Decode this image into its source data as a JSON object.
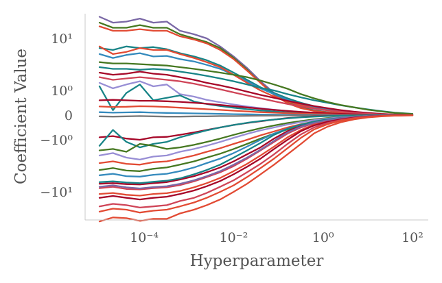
{
  "chart_data": {
    "type": "line",
    "title": "",
    "xlabel": "Hyperparameter",
    "ylabel": "Coefficient Value",
    "x_scale": "log",
    "y_scale": "symlog",
    "xlim": [
      1e-05,
      100
    ],
    "ylim": [
      -60,
      40
    ],
    "x_ticks": [
      {
        "value": 0.0001,
        "label": "10⁻⁴"
      },
      {
        "value": 0.01,
        "label": "10⁻²"
      },
      {
        "value": 1,
        "label": "10⁰"
      },
      {
        "value": 100,
        "label": "10²"
      }
    ],
    "y_ticks": [
      {
        "value": 10,
        "label": "10¹"
      },
      {
        "value": 1,
        "label": "10⁰"
      },
      {
        "value": 0,
        "label": "0"
      },
      {
        "value": -1,
        "label": "−10⁰"
      },
      {
        "value": -10,
        "label": "−10¹"
      }
    ],
    "grid": false,
    "legend": "none",
    "palette": [
      "#e24a33",
      "#348abd",
      "#988ed5",
      "#777777",
      "#fbc15e",
      "#8eba42",
      "#ffb5b8",
      "#a60628",
      "#467821",
      "#7a68a6",
      "#188487",
      "#cf4457",
      "#d55e00"
    ],
    "x": [
      1e-05,
      2e-05,
      4e-05,
      8e-05,
      0.00016,
      0.00032,
      0.00063,
      0.0013,
      0.0025,
      0.005,
      0.01,
      0.02,
      0.04,
      0.08,
      0.16,
      0.32,
      0.63,
      1.26,
      2.5,
      5,
      10,
      20,
      40,
      100
    ],
    "series": [
      {
        "color": "#7a68a6",
        "values": [
          26,
          20,
          21,
          24,
          20,
          21,
          14,
          12,
          10,
          7,
          4.5,
          2.7,
          1.5,
          0.9,
          0.55,
          0.33,
          0.2,
          0.12,
          0.07,
          0.04,
          0.02,
          0.01,
          0.005,
          0.003
        ]
      },
      {
        "color": "#467821",
        "values": [
          20,
          16,
          16,
          18,
          16,
          16,
          12,
          10,
          8.5,
          6.5,
          4.2,
          2.5,
          1.4,
          0.85,
          0.5,
          0.3,
          0.18,
          0.11,
          0.06,
          0.035,
          0.018,
          0.009,
          0.004,
          0.002
        ]
      },
      {
        "color": "#e24a33",
        "values": [
          17,
          14,
          14,
          15,
          14,
          14,
          11,
          9.5,
          8,
          6,
          4,
          2.4,
          1.4,
          0.82,
          0.48,
          0.28,
          0.17,
          0.1,
          0.06,
          0.034,
          0.017,
          0.009,
          0.004,
          0.002
        ]
      },
      {
        "color": "#188487",
        "values": [
          6.5,
          6,
          7,
          6.5,
          6.8,
          6.2,
          5.2,
          4.5,
          3.8,
          3,
          2.2,
          1.6,
          1.15,
          0.9,
          0.68,
          0.5,
          0.36,
          0.26,
          0.18,
          0.12,
          0.07,
          0.04,
          0.02,
          0.01
        ]
      },
      {
        "color": "#348abd",
        "values": [
          5,
          4.2,
          4.8,
          5.2,
          4.5,
          4.6,
          4,
          3.6,
          3.1,
          2.6,
          2,
          1.5,
          1.1,
          0.85,
          0.62,
          0.45,
          0.32,
          0.22,
          0.15,
          0.1,
          0.06,
          0.03,
          0.015,
          0.006
        ]
      },
      {
        "color": "#e24a33",
        "values": [
          7,
          5,
          5.5,
          6.5,
          6,
          6,
          5,
          4.2,
          3.5,
          2.8,
          2,
          1.4,
          1,
          0.75,
          0.55,
          0.4,
          0.28,
          0.19,
          0.12,
          0.08,
          0.045,
          0.025,
          0.012,
          0.005
        ]
      },
      {
        "color": "#188487",
        "values": [
          2.8,
          2.6,
          2.6,
          2.5,
          2.6,
          2.5,
          2.3,
          2.1,
          1.9,
          1.7,
          1.5,
          1.3,
          1.12,
          1,
          0.85,
          0.72,
          0.6,
          0.5,
          0.4,
          0.31,
          0.23,
          0.16,
          0.1,
          0.05
        ]
      },
      {
        "color": "#467821",
        "values": [
          3.5,
          3.3,
          3.3,
          3.2,
          3.1,
          3,
          2.8,
          2.6,
          2.4,
          2.2,
          2,
          1.8,
          1.55,
          1.3,
          1.08,
          0.85,
          0.68,
          0.53,
          0.41,
          0.31,
          0.22,
          0.15,
          0.09,
          0.045
        ]
      },
      {
        "color": "#a60628",
        "values": [
          2.2,
          2,
          2.1,
          2.3,
          2.1,
          2,
          1.8,
          1.6,
          1.4,
          1.25,
          1.1,
          0.95,
          0.82,
          0.7,
          0.58,
          0.47,
          0.37,
          0.28,
          0.2,
          0.14,
          0.09,
          0.05,
          0.025,
          0.01
        ]
      },
      {
        "color": "#cf4457",
        "values": [
          1.8,
          1.6,
          1.7,
          1.8,
          1.7,
          1.6,
          1.5,
          1.35,
          1.2,
          1.05,
          0.92,
          0.8,
          0.68,
          0.56,
          0.45,
          0.35,
          0.27,
          0.2,
          0.14,
          0.09,
          0.055,
          0.03,
          0.015,
          0.006
        ]
      },
      {
        "color": "#988ed5",
        "values": [
          1.4,
          1.1,
          1.3,
          1.5,
          1.2,
          1.3,
          0.85,
          0.75,
          0.62,
          0.52,
          0.43,
          0.35,
          0.28,
          0.22,
          0.17,
          0.12,
          0.085,
          0.06,
          0.04,
          0.025,
          0.014,
          0.008,
          0.004,
          0.002
        ]
      },
      {
        "color": "#188487",
        "values": [
          1.2,
          0.2,
          0.9,
          1.3,
          0.6,
          0.7,
          0.8,
          0.55,
          0.45,
          0.37,
          0.3,
          0.24,
          0.19,
          0.15,
          0.11,
          0.08,
          0.055,
          0.04,
          0.027,
          0.017,
          0.01,
          0.006,
          0.003,
          0.001
        ]
      },
      {
        "color": "#a60628",
        "values": [
          0.6,
          0.62,
          0.6,
          0.58,
          0.58,
          0.56,
          0.54,
          0.5,
          0.46,
          0.41,
          0.36,
          0.31,
          0.26,
          0.21,
          0.17,
          0.13,
          0.1,
          0.07,
          0.05,
          0.032,
          0.02,
          0.011,
          0.005,
          0.002
        ]
      },
      {
        "color": "#e24a33",
        "values": [
          0.35,
          0.33,
          0.34,
          0.36,
          0.35,
          0.33,
          0.3,
          0.27,
          0.24,
          0.21,
          0.18,
          0.15,
          0.12,
          0.1,
          0.08,
          0.06,
          0.045,
          0.032,
          0.022,
          0.014,
          0.008,
          0.004,
          0.002,
          0.001
        ]
      },
      {
        "color": "#348abd",
        "values": [
          0.12,
          0.1,
          0.11,
          0.12,
          0.1,
          0.09,
          0.08,
          0.07,
          0.06,
          0.05,
          0.04,
          0.032,
          0.025,
          0.019,
          0.014,
          0.01,
          0.007,
          0.005,
          0.003,
          0.002,
          0.001,
          0.0005,
          0.0002,
          0.0001
        ]
      },
      {
        "color": "#777777",
        "values": [
          -0.05,
          -0.06,
          -0.05,
          -0.04,
          -0.05,
          -0.06,
          -0.06,
          -0.05,
          -0.05,
          -0.04,
          -0.04,
          -0.03,
          -0.025,
          -0.02,
          -0.015,
          -0.01,
          -0.007,
          -0.005,
          -0.003,
          -0.002,
          -0.001,
          -0.0005,
          -0.0002,
          -0.0001
        ]
      },
      {
        "color": "#a60628",
        "values": [
          -0.9,
          -0.85,
          -0.95,
          -1,
          -0.9,
          -0.88,
          -0.8,
          -0.7,
          -0.6,
          -0.5,
          -0.4,
          -0.32,
          -0.25,
          -0.18,
          -0.12,
          -0.08,
          -0.05,
          -0.032,
          -0.02,
          -0.012,
          -0.007,
          -0.004,
          -0.002,
          -0.001
        ]
      },
      {
        "color": "#188487",
        "values": [
          -1.3,
          -0.6,
          -1.1,
          -1.4,
          -1.2,
          -1.1,
          -0.9,
          -0.75,
          -0.62,
          -0.5,
          -0.4,
          -0.31,
          -0.24,
          -0.18,
          -0.13,
          -0.09,
          -0.06,
          -0.04,
          -0.026,
          -0.016,
          -0.009,
          -0.005,
          -0.002,
          -0.001
        ]
      },
      {
        "color": "#467821",
        "values": [
          -1.6,
          -1.5,
          -1.7,
          -1.2,
          -1.3,
          -1.5,
          -1.4,
          -1.25,
          -1.1,
          -0.95,
          -0.8,
          -0.66,
          -0.53,
          -0.42,
          -0.32,
          -0.24,
          -0.17,
          -0.12,
          -0.08,
          -0.05,
          -0.03,
          -0.016,
          -0.008,
          -0.003
        ]
      },
      {
        "color": "#988ed5",
        "values": [
          -2,
          -1.8,
          -2.2,
          -2.4,
          -2.1,
          -2,
          -1.7,
          -1.5,
          -1.3,
          -1.1,
          -0.92,
          -0.76,
          -0.62,
          -0.5,
          -0.38,
          -0.28,
          -0.2,
          -0.14,
          -0.09,
          -0.055,
          -0.032,
          -0.017,
          -0.008,
          -0.003
        ]
      },
      {
        "color": "#e24a33",
        "values": [
          -2.8,
          -2.6,
          -2.9,
          -3,
          -2.7,
          -2.6,
          -2.3,
          -2,
          -1.7,
          -1.45,
          -1.2,
          -1,
          -0.82,
          -0.66,
          -0.5,
          -0.37,
          -0.26,
          -0.18,
          -0.12,
          -0.075,
          -0.044,
          -0.024,
          -0.011,
          -0.004
        ]
      },
      {
        "color": "#467821",
        "values": [
          -3.8,
          -3.5,
          -3.9,
          -4,
          -3.6,
          -3.4,
          -3,
          -2.6,
          -2.2,
          -1.85,
          -1.5,
          -1.2,
          -0.95,
          -0.75,
          -0.58,
          -0.43,
          -0.3,
          -0.21,
          -0.14,
          -0.09,
          -0.052,
          -0.028,
          -0.013,
          -0.005
        ]
      },
      {
        "color": "#348abd",
        "values": [
          -4.8,
          -4.5,
          -5,
          -5.1,
          -4.7,
          -4.5,
          -4,
          -3.4,
          -2.8,
          -2.3,
          -1.8,
          -1.35,
          -1,
          -0.75,
          -0.55,
          -0.4,
          -0.28,
          -0.19,
          -0.12,
          -0.075,
          -0.043,
          -0.023,
          -0.011,
          -0.004
        ]
      },
      {
        "color": "#a60628",
        "values": [
          -7,
          -6.8,
          -7.1,
          -7.2,
          -6.8,
          -6.5,
          -5.8,
          -5,
          -4.2,
          -3.4,
          -2.6,
          -1.9,
          -1.4,
          -0.95,
          -0.65,
          -0.45,
          -0.3,
          -0.2,
          -0.13,
          -0.08,
          -0.045,
          -0.024,
          -0.011,
          -0.004
        ]
      },
      {
        "color": "#188487",
        "values": [
          -6.5,
          -6.3,
          -6.6,
          -6.8,
          -6.4,
          -6.1,
          -5.5,
          -4.6,
          -3.8,
          -3,
          -2.2,
          -1.6,
          -1.15,
          -0.8,
          -0.56,
          -0.38,
          -0.26,
          -0.17,
          -0.11,
          -0.065,
          -0.036,
          -0.019,
          -0.009,
          -0.003
        ]
      },
      {
        "color": "#cf4457",
        "values": [
          -8.5,
          -8,
          -8.8,
          -9,
          -8.5,
          -8.2,
          -7.4,
          -6.3,
          -5.2,
          -4.2,
          -3.2,
          -2.3,
          -1.6,
          -1.1,
          -0.75,
          -0.5,
          -0.33,
          -0.21,
          -0.13,
          -0.08,
          -0.045,
          -0.024,
          -0.011,
          -0.004
        ]
      },
      {
        "color": "#e24a33",
        "values": [
          -11,
          -10.5,
          -11.4,
          -11.8,
          -11,
          -10.6,
          -9.6,
          -8.2,
          -6.8,
          -5.4,
          -4,
          -2.9,
          -2,
          -1.35,
          -0.9,
          -0.6,
          -0.39,
          -0.25,
          -0.16,
          -0.095,
          -0.053,
          -0.028,
          -0.013,
          -0.005
        ]
      },
      {
        "color": "#7a68a6",
        "values": [
          -8,
          -7.5,
          -8.2,
          -8.6,
          -8.1,
          -7.8,
          -7,
          -6,
          -5,
          -4,
          -3,
          -2.2,
          -1.55,
          -1.05,
          -0.7,
          -0.47,
          -0.31,
          -0.2,
          -0.12,
          -0.075,
          -0.042,
          -0.022,
          -0.01,
          -0.004
        ]
      },
      {
        "color": "#a60628",
        "values": [
          -13,
          -12,
          -13,
          -14,
          -13,
          -12.4,
          -11,
          -9.4,
          -7.8,
          -6.2,
          -4.6,
          -3.3,
          -2.3,
          -1.5,
          -1,
          -0.65,
          -0.42,
          -0.27,
          -0.17,
          -0.1,
          -0.056,
          -0.03,
          -0.014,
          -0.005
        ]
      },
      {
        "color": "#cf4457",
        "values": [
          -19,
          -17,
          -18,
          -20,
          -19,
          -18,
          -15,
          -13,
          -10.5,
          -8,
          -6,
          -4.2,
          -2.9,
          -1.9,
          -1.2,
          -0.78,
          -0.5,
          -0.32,
          -0.2,
          -0.12,
          -0.067,
          -0.035,
          -0.016,
          -0.006
        ]
      },
      {
        "color": "#e24a33",
        "values": [
          -24,
          -21,
          -22,
          -25,
          -23,
          -22,
          -19,
          -16,
          -13,
          -10,
          -7.5,
          -5.2,
          -3.5,
          -2.3,
          -1.45,
          -0.92,
          -0.58,
          -0.37,
          -0.23,
          -0.14,
          -0.076,
          -0.04,
          -0.018,
          -0.007
        ]
      },
      {
        "color": "#e24a33",
        "values": [
          -37,
          -31,
          -32,
          -36,
          -33,
          -33,
          -26,
          -22,
          -18,
          -14,
          -10,
          -7,
          -4.6,
          -3,
          -1.9,
          -1.2,
          -0.74,
          -0.47,
          -0.29,
          -0.17,
          -0.095,
          -0.05,
          -0.022,
          -0.008
        ]
      }
    ]
  }
}
